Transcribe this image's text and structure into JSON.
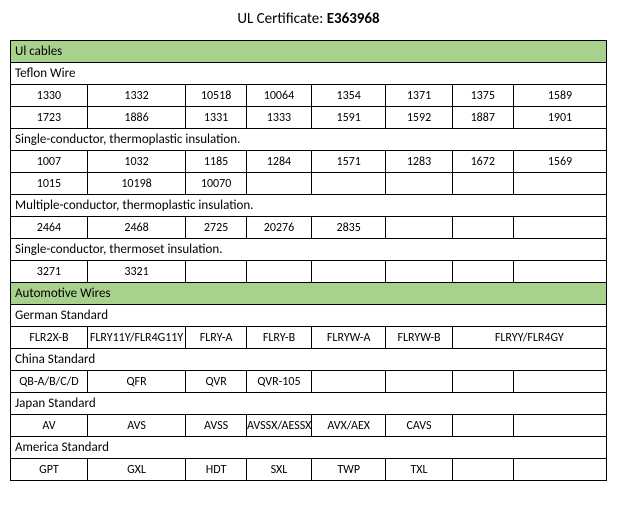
{
  "title": {
    "label": "UL Certificate:",
    "value": "E363968"
  },
  "colors": {
    "section_bg": "#a9d18e",
    "border": "#000000",
    "bg": "#ffffff"
  },
  "sections": {
    "ul_cables": {
      "header": "Ul cables",
      "groups": [
        {
          "label": "Teflon Wire",
          "rows": [
            [
              "1330",
              "1332",
              "10518",
              "10064",
              "1354",
              "1371",
              "1375",
              "1589"
            ],
            [
              "1723",
              "1886",
              "1331",
              "1333",
              "1591",
              "1592",
              "1887",
              "1901"
            ]
          ]
        },
        {
          "label": "Single-conductor, thermoplastic insulation.",
          "rows": [
            [
              "1007",
              "1032",
              "1185",
              "1284",
              "1571",
              "1283",
              "1672",
              "1569"
            ],
            [
              "1015",
              "10198",
              "10070",
              "",
              "",
              "",
              "",
              ""
            ]
          ]
        },
        {
          "label": "Multiple-conductor, thermoplastic insulation.",
          "rows": [
            [
              "2464",
              "2468",
              "2725",
              "20276",
              "2835",
              "",
              "",
              ""
            ]
          ]
        },
        {
          "label": "Single-conductor, thermoset insulation.",
          "rows": [
            [
              "3271",
              "3321",
              "",
              "",
              "",
              "",
              "",
              ""
            ]
          ]
        }
      ]
    },
    "automotive": {
      "header": "Automotive Wires",
      "groups": [
        {
          "label": "German Standard",
          "rows": [
            [
              "FLR2X-B",
              "FLRY11Y/FLR4G11Y",
              "FLRY-A",
              "FLRY-B",
              "FLRYW-A",
              "FLRYW-B",
              "FLRYY/FLR4GY"
            ]
          ],
          "mode": "german"
        },
        {
          "label": "China Standard",
          "rows": [
            [
              "QB-A/B/C/D",
              "QFR",
              "QVR",
              "QVR-105",
              "",
              "",
              "",
              ""
            ]
          ]
        },
        {
          "label": "Japan Standard",
          "rows": [
            [
              "AV",
              "AVS",
              "AVSS",
              "AVSSX/AESSX",
              "AVX/AEX",
              "CAVS",
              "",
              ""
            ]
          ]
        },
        {
          "label": "America Standard",
          "rows": [
            [
              "GPT",
              "GXL",
              "HDT",
              "SXL",
              "TWP",
              "TXL",
              "",
              ""
            ]
          ]
        }
      ]
    }
  }
}
